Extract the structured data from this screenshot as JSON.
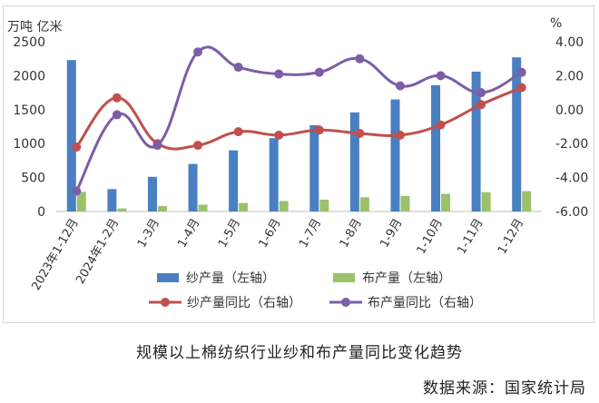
{
  "chart_data": {
    "type": "bar",
    "title": "规模以上棉纺织行业纱和布产量同比变化趋势",
    "left_axis_unit": "万吨 亿米",
    "right_axis_unit": "%",
    "categories": [
      "2023年1-12月",
      "2024年1-2月",
      "1-3月",
      "1-4月",
      "1-5月",
      "1-6月",
      "1-7月",
      "1-8月",
      "1-9月",
      "1-10月",
      "1-11月",
      "1-12月"
    ],
    "left_ylim": [
      0,
      2500
    ],
    "left_ticks": [
      "0",
      "500",
      "1000",
      "1500",
      "2000",
      "2500"
    ],
    "right_ylim": [
      -6,
      4
    ],
    "right_ticks": [
      "-6.00",
      "-4.00",
      "-2.00",
      "0.00",
      "2.00",
      "4.00"
    ],
    "series": [
      {
        "name": "纱产量（左轴）",
        "kind": "bar",
        "axis": "left",
        "color": "#4a7fc1",
        "values": [
          2230,
          330,
          510,
          700,
          900,
          1080,
          1270,
          1460,
          1650,
          1860,
          2060,
          2270
        ]
      },
      {
        "name": "布产量（左轴）",
        "kind": "bar",
        "axis": "left",
        "color": "#9bc26b",
        "values": [
          290,
          45,
          80,
          100,
          125,
          155,
          175,
          210,
          230,
          260,
          285,
          300
        ]
      },
      {
        "name": "纱产量同比（右轴）",
        "kind": "line",
        "axis": "right",
        "color": "#c0504d",
        "values": [
          -2.2,
          0.7,
          -2.0,
          -2.1,
          -1.3,
          -1.5,
          -1.2,
          -1.4,
          -1.5,
          -0.9,
          0.3,
          1.3
        ]
      },
      {
        "name": "布产量同比（右轴）",
        "kind": "line",
        "axis": "right",
        "color": "#7b5ea7",
        "values": [
          -4.8,
          -0.3,
          -2.1,
          3.4,
          2.5,
          2.1,
          2.2,
          3.0,
          1.4,
          2.0,
          1.0,
          2.2
        ]
      }
    ]
  },
  "caption": "规模以上棉纺织行业纱和布产量同比变化趋势",
  "source": "数据来源：国家统计局"
}
